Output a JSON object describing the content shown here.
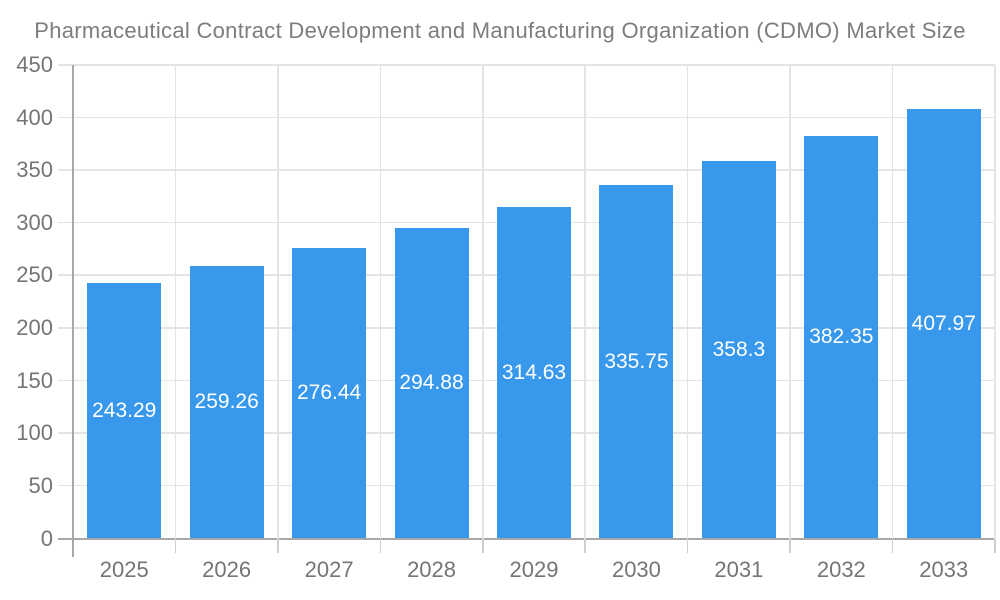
{
  "chart_data": {
    "type": "bar",
    "title": "Pharmaceutical Contract Development and Manufacturing Organization (CDMO) Market Size",
    "categories": [
      "2025",
      "2026",
      "2027",
      "2028",
      "2029",
      "2030",
      "2031",
      "2032",
      "2033"
    ],
    "values": [
      243.29,
      259.26,
      276.44,
      294.88,
      314.63,
      335.75,
      358.3,
      382.35,
      407.97
    ],
    "xlabel": "",
    "ylabel": "",
    "ylim": [
      0,
      450
    ],
    "ytick_step": 50,
    "grid": true,
    "legend_position": "none",
    "colors": {
      "bar": "#3899EC",
      "bar_label": "#FFFFFF",
      "grid": "#E4E4E4",
      "axis": "#A8A8A8",
      "tick_label": "#757575",
      "title": "#7D7D7D"
    }
  }
}
